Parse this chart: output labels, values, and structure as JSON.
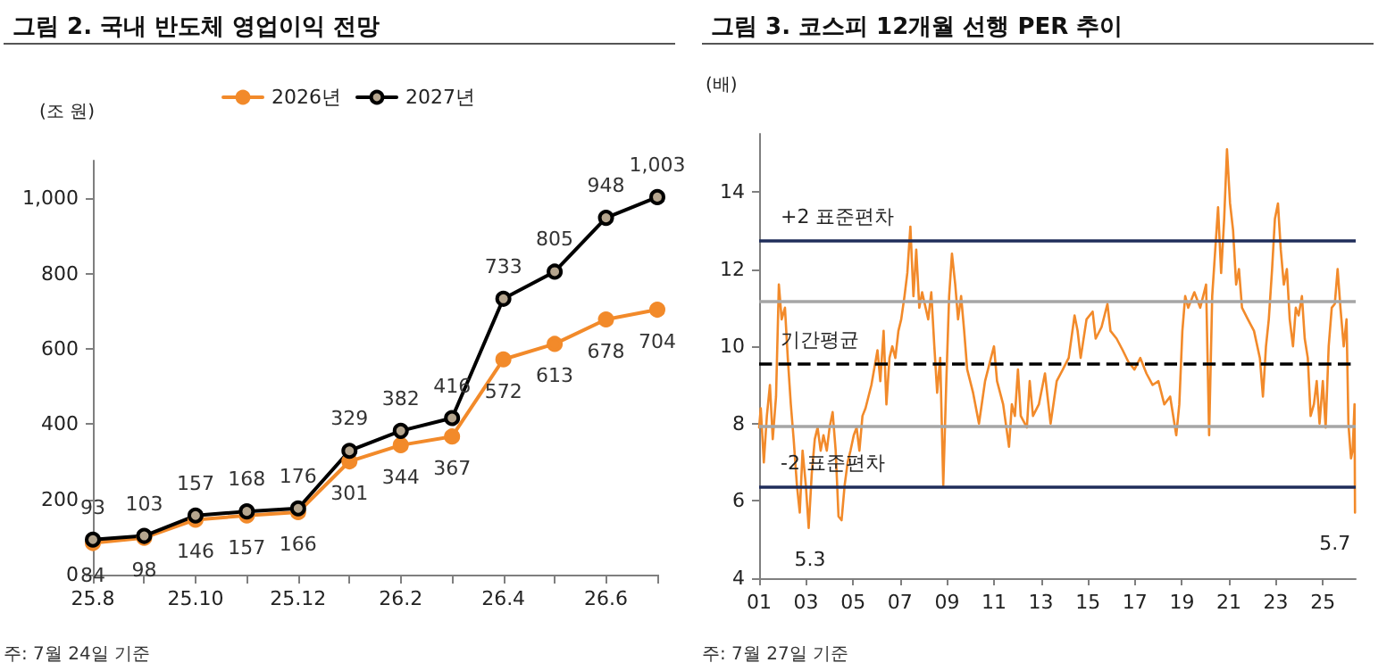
{
  "chart_data": [
    {
      "type": "line",
      "title": "그림 2. 국내 반도체 영업이익 전망",
      "ylabel": "(조 원)",
      "annotations": [
        "주: 7월 24일 기준"
      ],
      "categories": [
        "25.8",
        null,
        "25.10",
        null,
        "25.12",
        null,
        "26.2",
        null,
        "26.4",
        null,
        "26.6",
        null
      ],
      "series": [
        {
          "name": "2026년",
          "color": "#f28a2a",
          "values": [
            84,
            98,
            146,
            157,
            166,
            301,
            344,
            367,
            572,
            613,
            678,
            704
          ],
          "value_labels": [
            "84",
            "98",
            "146",
            "157",
            "166",
            "301",
            "344",
            "367",
            "572",
            "613",
            "678",
            "704"
          ]
        },
        {
          "name": "2027년",
          "color": "#000000",
          "values": [
            93,
            103,
            157,
            168,
            176,
            329,
            382,
            416,
            733,
            805,
            948,
            1003
          ],
          "value_labels": [
            "93",
            "103",
            "157",
            "168",
            "176",
            "329",
            "382",
            "416",
            "733",
            "805",
            "948",
            "1,003"
          ]
        }
      ],
      "ylim": [
        0,
        1100
      ],
      "yticks": [
        0,
        {
          "value": 200,
          "label": "200"
        },
        {
          "value": 400,
          "label": "400"
        },
        {
          "value": 600,
          "label": "600"
        },
        {
          "value": 800,
          "label": "800"
        },
        {
          "value": 1000,
          "label": "1,000"
        }
      ],
      "marker": "circle",
      "legend": "top",
      "grid": false
    },
    {
      "type": "line",
      "title": "그림 3. 코스피 12개월 선행 PER 추이",
      "ylabel": "(배)",
      "annotations": [
        {
          "text": "5.3",
          "x": 2003.11,
          "y": 5.3
        },
        {
          "text": "5.7",
          "x": 2026.37,
          "y": 5.7
        },
        "주: 7월 27일 기준"
      ],
      "series": [
        {
          "color": "#f28a2a",
          "x": [
            2001.0,
            2001.07,
            2001.2,
            2001.33,
            2001.46,
            2001.58,
            2001.72,
            2001.84,
            2001.96,
            2002.1,
            2002.22,
            2002.35,
            2002.47,
            2002.61,
            2002.73,
            2002.85,
            2002.99,
            2003.11,
            2003.24,
            2003.37,
            2003.49,
            2003.62,
            2003.74,
            2003.88,
            2004.0,
            2004.13,
            2004.26,
            2004.38,
            2004.51,
            2004.64,
            2004.77,
            2004.89,
            2005.03,
            2005.15,
            2005.27,
            2005.4,
            2005.53,
            2005.78,
            2006.04,
            2006.16,
            2006.3,
            2006.42,
            2006.55,
            2006.67,
            2006.8,
            2006.93,
            2007.05,
            2007.19,
            2007.31,
            2007.44,
            2007.57,
            2007.69,
            2007.82,
            2007.94,
            2008.2,
            2008.33,
            2008.46,
            2008.58,
            2008.71,
            2008.84,
            2008.97,
            2009.09,
            2009.21,
            2009.35,
            2009.47,
            2009.6,
            2009.73,
            2009.86,
            2010.11,
            2010.36,
            2010.62,
            2010.87,
            2011.0,
            2011.13,
            2011.39,
            2011.64,
            2011.76,
            2011.89,
            2012.02,
            2012.14,
            2012.4,
            2012.52,
            2012.66,
            2012.91,
            2013.17,
            2013.41,
            2013.67,
            2013.93,
            2014.18,
            2014.43,
            2014.56,
            2014.69,
            2014.94,
            2015.2,
            2015.33,
            2015.58,
            2015.83,
            2015.96,
            2016.22,
            2016.48,
            2016.72,
            2016.98,
            2017.23,
            2017.49,
            2017.75,
            2018.0,
            2018.25,
            2018.5,
            2018.76,
            2018.89,
            2019.02,
            2019.14,
            2019.27,
            2019.53,
            2019.78,
            2020.03,
            2020.16,
            2020.29,
            2020.42,
            2020.54,
            2020.67,
            2020.8,
            2020.92,
            2021.05,
            2021.18,
            2021.31,
            2021.43,
            2021.56,
            2021.81,
            2022.07,
            2022.32,
            2022.45,
            2022.58,
            2022.7,
            2022.84,
            2022.96,
            2023.09,
            2023.21,
            2023.34,
            2023.47,
            2023.59,
            2023.73,
            2023.85,
            2023.97,
            2024.11,
            2024.23,
            2024.36,
            2024.48,
            2024.62,
            2024.74,
            2024.86,
            2025.0,
            2025.12,
            2025.25,
            2025.38,
            2025.51,
            2025.63,
            2025.75,
            2025.89,
            2026.01,
            2026.09,
            2026.2,
            2026.27,
            2026.35,
            2026.37
          ],
          "values": [
            7.9,
            8.4,
            7.0,
            8.2,
            9.0,
            7.6,
            8.7,
            11.6,
            10.7,
            11.0,
            9.7,
            8.5,
            7.6,
            6.4,
            5.7,
            7.3,
            6.4,
            5.3,
            6.7,
            7.6,
            7.9,
            7.3,
            7.7,
            7.3,
            7.9,
            8.3,
            7.3,
            5.6,
            5.5,
            6.4,
            7.0,
            7.3,
            7.7,
            7.9,
            7.3,
            8.2,
            8.4,
            9.0,
            9.9,
            9.1,
            10.4,
            8.5,
            9.7,
            10.0,
            9.7,
            10.4,
            10.7,
            11.3,
            11.9,
            13.1,
            11.3,
            12.5,
            11.0,
            11.4,
            10.7,
            11.4,
            10.0,
            8.8,
            9.7,
            6.4,
            9.1,
            11.3,
            12.4,
            11.6,
            10.7,
            11.3,
            10.4,
            9.4,
            8.8,
            8.0,
            9.1,
            9.7,
            10.0,
            9.1,
            8.5,
            7.4,
            8.5,
            8.2,
            9.4,
            8.2,
            7.9,
            9.1,
            8.2,
            8.5,
            9.3,
            8.0,
            9.1,
            9.4,
            9.7,
            10.8,
            10.4,
            9.7,
            10.7,
            10.9,
            10.2,
            10.5,
            11.1,
            10.4,
            10.2,
            9.9,
            9.6,
            9.4,
            9.7,
            9.3,
            9.0,
            9.1,
            8.5,
            8.7,
            7.7,
            8.5,
            10.4,
            11.3,
            11.0,
            11.4,
            11.0,
            11.6,
            7.7,
            11.3,
            12.5,
            13.6,
            11.9,
            13.3,
            15.1,
            13.7,
            13.0,
            11.6,
            12.0,
            11.0,
            10.7,
            10.4,
            9.7,
            8.7,
            10.0,
            10.7,
            12.0,
            13.3,
            13.7,
            12.5,
            11.6,
            12.0,
            10.7,
            10.0,
            11.0,
            10.8,
            11.3,
            10.2,
            9.7,
            8.2,
            8.5,
            9.1,
            8.0,
            9.1,
            7.9,
            10.0,
            11.0,
            11.1,
            12.0,
            11.0,
            10.0,
            10.7,
            8.0,
            7.1,
            7.3,
            8.5,
            5.7
          ]
        }
      ],
      "xlim": [
        2001,
        2026.4
      ],
      "xticks": [
        {
          "value": 2001,
          "label": "01"
        },
        {
          "value": 2003,
          "label": "03"
        },
        {
          "value": 2005,
          "label": "05"
        },
        {
          "value": 2007,
          "label": "07"
        },
        {
          "value": 2009,
          "label": "09"
        },
        {
          "value": 2011,
          "label": "11"
        },
        {
          "value": 2013,
          "label": "13"
        },
        {
          "value": 2015,
          "label": "15"
        },
        {
          "value": 2017,
          "label": "17"
        },
        {
          "value": 2019,
          "label": "19"
        },
        {
          "value": 2021,
          "label": "21"
        },
        {
          "value": 2023,
          "label": "23"
        },
        {
          "value": 2025,
          "label": "25"
        }
      ],
      "ylim": [
        4,
        15.5
      ],
      "yticks": [
        4,
        6,
        8,
        10,
        12,
        14
      ],
      "ref_lines": [
        {
          "axis": "y",
          "value": 12.74,
          "label": "+2 표준편차",
          "color": "#1f2d5a",
          "line_style": "solid"
        },
        {
          "axis": "y",
          "value": 11.16,
          "label": null,
          "color": "#a6a6a6",
          "line_style": "solid"
        },
        {
          "axis": "y",
          "value": 9.55,
          "label": "기간평균",
          "color": "#000000",
          "line_style": "dashed"
        },
        {
          "axis": "y",
          "value": 7.95,
          "label": null,
          "color": "#a6a6a6",
          "line_style": "solid"
        },
        {
          "axis": "y",
          "value": 6.35,
          "label": "-2 표준편차",
          "color": "#1f2d5a",
          "line_style": "solid"
        }
      ],
      "marker": "none",
      "legend": false,
      "grid": false
    }
  ]
}
